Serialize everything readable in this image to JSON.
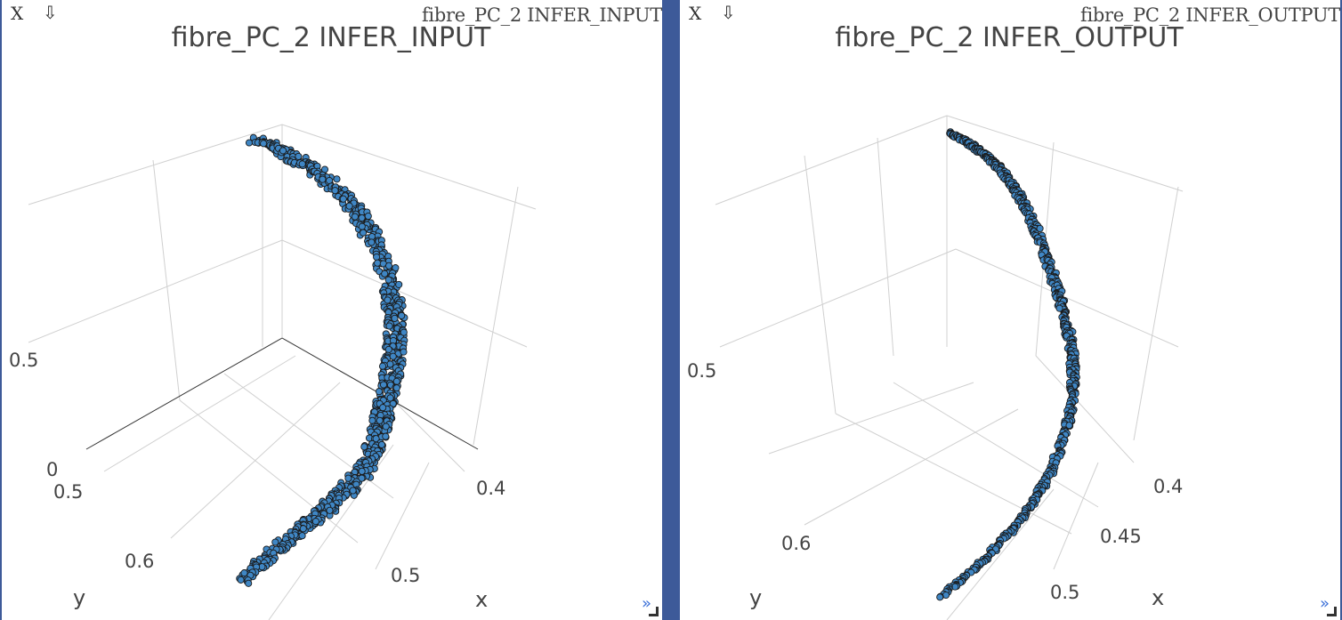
{
  "panels": [
    {
      "caption": "fibre_PC_2 INFER_INPUT",
      "close_label": "X",
      "download_label": "⇩",
      "expand_label": "»",
      "chart_data": {
        "type": "scatter3d",
        "title": "fibre_PC_2  INFER_INPUT",
        "marker_color": "#3f86c4",
        "marker_outline": "#1a1a1a",
        "axes": {
          "x": {
            "title": "x",
            "ticks": [
              "0.4",
              "0.5"
            ]
          },
          "y": {
            "title": "y",
            "ticks": [
              "0.5",
              "0.6"
            ]
          },
          "z": {
            "title": "",
            "ticks": [
              "0",
              "0.5"
            ]
          }
        },
        "grid": true
      }
    },
    {
      "caption": "fibre_PC_2 INFER_OUTPUT",
      "close_label": "X",
      "download_label": "⇩",
      "expand_label": "»",
      "chart_data": {
        "type": "scatter3d",
        "title": "fibre_PC_2  INFER_OUTPUT",
        "marker_color": "#3f86c4",
        "marker_outline": "#1a1a1a",
        "axes": {
          "x": {
            "title": "x",
            "ticks": [
              "0.4",
              "0.45",
              "0.5"
            ]
          },
          "y": {
            "title": "y",
            "ticks": [
              "0.6"
            ]
          },
          "z": {
            "title": "",
            "ticks": [
              "0.5"
            ]
          }
        },
        "grid": true
      }
    }
  ]
}
